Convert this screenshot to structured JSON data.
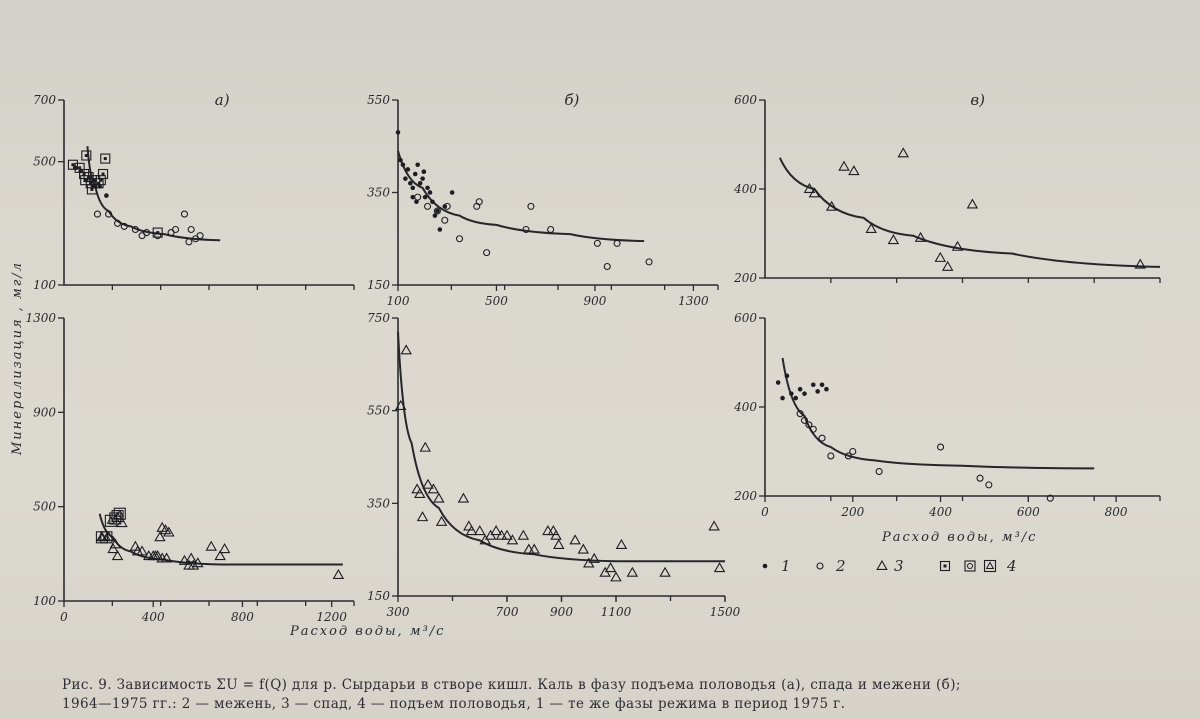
{
  "y_axis_label": "Минерализация , мг/л",
  "x_axis_label": "Расход воды, м³/с",
  "legend": [
    {
      "marker": "dot",
      "label": "1"
    },
    {
      "marker": "circle",
      "label": "2"
    },
    {
      "marker": "triangle",
      "label": "3"
    },
    {
      "marker": "boxed",
      "label": "4"
    }
  ],
  "caption": {
    "line1": "Рис. 9. Зависимость ΣU = f(Q) для р. Сырдарьи в створе кишл. Каль в фазу подъема половодья (а), спада и межени (б);",
    "line2": "1964—1975 гг.: 2 — межень, 3 — спад, 4 — подъем половодья, 1 — те же фазы режима в период 1975 г."
  },
  "chart_data": [
    {
      "id": "a-top",
      "panel_label": "а)",
      "type": "scatter",
      "xlim": [
        0,
        1300
      ],
      "ylim": [
        100,
        700
      ],
      "xticks": [],
      "yticks": [
        100,
        500,
        700
      ],
      "series": [
        {
          "marker": "boxed-square",
          "points": [
            [
              40,
              490
            ],
            [
              70,
              480
            ],
            [
              90,
              460
            ],
            [
              95,
              440
            ],
            [
              100,
              520
            ],
            [
              110,
              450
            ],
            [
              120,
              430
            ],
            [
              125,
              410
            ],
            [
              140,
              440
            ],
            [
              155,
              430
            ],
            [
              165,
              440
            ],
            [
              175,
              460
            ],
            [
              185,
              510
            ],
            [
              420,
              270
            ]
          ]
        },
        {
          "marker": "dot",
          "points": [
            [
              50,
              480
            ],
            [
              75,
              470
            ],
            [
              100,
              440
            ],
            [
              130,
              420
            ],
            [
              160,
              420
            ],
            [
              190,
              390
            ]
          ]
        },
        {
          "marker": "circle",
          "points": [
            [
              150,
              330
            ],
            [
              200,
              330
            ],
            [
              240,
              300
            ],
            [
              270,
              290
            ],
            [
              320,
              280
            ],
            [
              350,
              260
            ],
            [
              370,
              270
            ],
            [
              420,
              260
            ],
            [
              480,
              270
            ],
            [
              500,
              280
            ],
            [
              540,
              330
            ],
            [
              560,
              240
            ],
            [
              570,
              280
            ],
            [
              590,
              250
            ],
            [
              610,
              260
            ]
          ]
        }
      ],
      "curves": [
        [
          [
            105,
            550
          ],
          [
            140,
            420
          ],
          [
            200,
            340
          ],
          [
            300,
            290
          ],
          [
            450,
            265
          ],
          [
            700,
            245
          ]
        ]
      ]
    },
    {
      "id": "b-top",
      "panel_label": "б)",
      "type": "scatter",
      "xlim": [
        100,
        1400
      ],
      "ylim": [
        150,
        550
      ],
      "xticks": [
        100,
        500,
        900,
        1300
      ],
      "yticks": [
        150,
        350,
        550
      ],
      "series": [
        {
          "marker": "dot",
          "points": [
            [
              100,
              480
            ],
            [
              110,
              420
            ],
            [
              120,
              410
            ],
            [
              130,
              380
            ],
            [
              140,
              400
            ],
            [
              150,
              370
            ],
            [
              160,
              360
            ],
            [
              170,
              390
            ],
            [
              180,
              410
            ],
            [
              190,
              370
            ],
            [
              200,
              380
            ],
            [
              210,
              340
            ],
            [
              220,
              360
            ],
            [
              230,
              350
            ],
            [
              240,
              330
            ],
            [
              250,
              300
            ],
            [
              260,
              310
            ],
            [
              270,
              270
            ],
            [
              290,
              320
            ],
            [
              320,
              350
            ],
            [
              160,
              340
            ],
            [
              175,
              330
            ],
            [
              205,
              395
            ]
          ]
        },
        {
          "marker": "circle",
          "points": [
            [
              180,
              340
            ],
            [
              220,
              320
            ],
            [
              260,
              310
            ],
            [
              290,
              290
            ],
            [
              300,
              320
            ],
            [
              350,
              250
            ],
            [
              420,
              320
            ],
            [
              430,
              330
            ],
            [
              460,
              220
            ],
            [
              620,
              270
            ],
            [
              640,
              320
            ],
            [
              720,
              270
            ],
            [
              910,
              240
            ],
            [
              950,
              190
            ],
            [
              990,
              240
            ],
            [
              1120,
              200
            ]
          ]
        }
      ],
      "curves": [
        [
          [
            100,
            440
          ],
          [
            200,
            360
          ],
          [
            350,
            300
          ],
          [
            500,
            280
          ],
          [
            800,
            260
          ],
          [
            1100,
            245
          ]
        ]
      ]
    },
    {
      "id": "v-top",
      "panel_label": "в)",
      "type": "scatter",
      "xlim": [
        0,
        800
      ],
      "ylim": [
        200,
        600
      ],
      "xticks": [],
      "yticks": [
        200,
        400,
        600
      ],
      "series": [
        {
          "marker": "triangle",
          "points": [
            [
              90,
              400
            ],
            [
              100,
              390
            ],
            [
              135,
              360
            ],
            [
              160,
              450
            ],
            [
              180,
              440
            ],
            [
              215,
              310
            ],
            [
              260,
              285
            ],
            [
              280,
              480
            ],
            [
              315,
              290
            ],
            [
              355,
              245
            ],
            [
              370,
              225
            ],
            [
              390,
              270
            ],
            [
              420,
              365
            ],
            [
              760,
              230
            ]
          ]
        }
      ],
      "curves": [
        [
          [
            30,
            470
          ],
          [
            100,
            400
          ],
          [
            200,
            335
          ],
          [
            300,
            295
          ],
          [
            500,
            255
          ],
          [
            800,
            225
          ]
        ]
      ]
    },
    {
      "id": "a-bottom",
      "type": "scatter",
      "xlim": [
        0,
        1300
      ],
      "ylim": [
        100,
        1300
      ],
      "xticks": [
        0,
        400,
        800,
        1200
      ],
      "yticks": [
        100,
        500,
        900,
        1300
      ],
      "series": [
        {
          "marker": "boxed-triangle",
          "points": [
            [
              170,
              370
            ],
            [
              190,
              370
            ],
            [
              210,
              440
            ],
            [
              230,
              450
            ],
            [
              240,
              460
            ],
            [
              250,
              470
            ]
          ]
        },
        {
          "marker": "triangle",
          "points": [
            [
              170,
              370
            ],
            [
              200,
              370
            ],
            [
              220,
              320
            ],
            [
              230,
              340
            ],
            [
              240,
              290
            ],
            [
              260,
              430
            ],
            [
              320,
              330
            ],
            [
              330,
              310
            ],
            [
              350,
              310
            ],
            [
              380,
              290
            ],
            [
              400,
              290
            ],
            [
              410,
              290
            ],
            [
              420,
              290
            ],
            [
              440,
              280
            ],
            [
              460,
              280
            ],
            [
              430,
              370
            ],
            [
              440,
              410
            ],
            [
              455,
              400
            ],
            [
              470,
              390
            ],
            [
              540,
              270
            ],
            [
              570,
              280
            ],
            [
              560,
              250
            ],
            [
              580,
              250
            ],
            [
              600,
              260
            ],
            [
              660,
              330
            ],
            [
              700,
              290
            ],
            [
              720,
              320
            ],
            [
              1230,
              210
            ]
          ]
        }
      ],
      "curves": [
        [
          [
            160,
            470
          ],
          [
            220,
            370
          ],
          [
            300,
            310
          ],
          [
            450,
            275
          ],
          [
            700,
            255
          ],
          [
            1250,
            255
          ]
        ]
      ]
    },
    {
      "id": "b-bottom",
      "type": "scatter",
      "xlim": [
        300,
        1500
      ],
      "ylim": [
        150,
        750
      ],
      "xticks": [
        300,
        700,
        900,
        1100,
        1500
      ],
      "yticks": [
        150,
        350,
        550,
        750
      ],
      "series": [
        {
          "marker": "triangle",
          "points": [
            [
              310,
              560
            ],
            [
              330,
              680
            ],
            [
              370,
              380
            ],
            [
              380,
              370
            ],
            [
              390,
              320
            ],
            [
              400,
              470
            ],
            [
              410,
              390
            ],
            [
              430,
              380
            ],
            [
              450,
              360
            ],
            [
              460,
              310
            ],
            [
              540,
              360
            ],
            [
              560,
              300
            ],
            [
              570,
              290
            ],
            [
              600,
              290
            ],
            [
              620,
              270
            ],
            [
              640,
              280
            ],
            [
              660,
              290
            ],
            [
              680,
              280
            ],
            [
              700,
              280
            ],
            [
              720,
              270
            ],
            [
              760,
              280
            ],
            [
              780,
              250
            ],
            [
              800,
              250
            ],
            [
              850,
              290
            ],
            [
              870,
              290
            ],
            [
              880,
              280
            ],
            [
              890,
              260
            ],
            [
              950,
              270
            ],
            [
              980,
              250
            ],
            [
              1000,
              220
            ],
            [
              1020,
              230
            ],
            [
              1060,
              200
            ],
            [
              1080,
              210
            ],
            [
              1100,
              190
            ],
            [
              1120,
              260
            ],
            [
              1160,
              200
            ],
            [
              1280,
              200
            ],
            [
              1460,
              300
            ],
            [
              1480,
              210
            ]
          ]
        }
      ],
      "curves": [
        [
          [
            300,
            720
          ],
          [
            350,
            480
          ],
          [
            450,
            340
          ],
          [
            600,
            270
          ],
          [
            800,
            240
          ],
          [
            1100,
            225
          ],
          [
            1500,
            225
          ]
        ]
      ]
    },
    {
      "id": "v-bottom",
      "type": "scatter",
      "xlim": [
        0,
        900
      ],
      "ylim": [
        200,
        600
      ],
      "xticks": [
        0,
        200,
        400,
        600,
        800
      ],
      "yticks": [
        200,
        400,
        600
      ],
      "series": [
        {
          "marker": "dot",
          "points": [
            [
              30,
              455
            ],
            [
              40,
              420
            ],
            [
              50,
              470
            ],
            [
              60,
              430
            ],
            [
              70,
              420
            ],
            [
              80,
              440
            ],
            [
              90,
              430
            ],
            [
              110,
              450
            ],
            [
              130,
              450
            ],
            [
              140,
              440
            ],
            [
              120,
              435
            ]
          ]
        },
        {
          "marker": "circle",
          "points": [
            [
              80,
              385
            ],
            [
              90,
              370
            ],
            [
              100,
              360
            ],
            [
              110,
              350
            ],
            [
              130,
              330
            ],
            [
              150,
              290
            ],
            [
              190,
              290
            ],
            [
              200,
              300
            ],
            [
              260,
              255
            ],
            [
              400,
              310
            ],
            [
              490,
              240
            ],
            [
              510,
              225
            ],
            [
              650,
              195
            ]
          ]
        }
      ],
      "curves": [
        [
          [
            40,
            510
          ],
          [
            90,
            380
          ],
          [
            150,
            310
          ],
          [
            250,
            280
          ],
          [
            450,
            268
          ],
          [
            750,
            262
          ]
        ]
      ]
    }
  ]
}
